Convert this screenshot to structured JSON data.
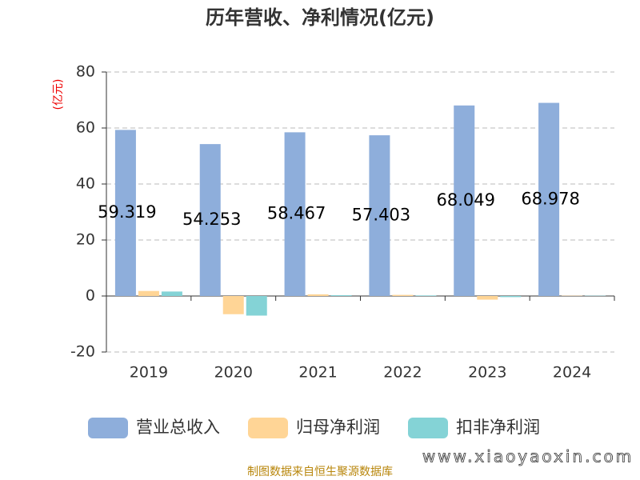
{
  "chart_data": {
    "type": "bar",
    "title": "历年营收、净利情况(亿元)",
    "y_label": "(亿元)",
    "categories": [
      "2019",
      "2020",
      "2021",
      "2022",
      "2023",
      "2024"
    ],
    "series": [
      {
        "name": "营业总收入",
        "color": "#8eaedb",
        "values": [
          59.319,
          54.253,
          58.467,
          57.403,
          68.049,
          68.978
        ]
      },
      {
        "name": "归母净利润",
        "color": "#ffd596",
        "values": [
          1.8,
          -6.5,
          0.6,
          0.4,
          -1.3,
          0.1
        ]
      },
      {
        "name": "扣非净利润",
        "color": "#84d3d6",
        "values": [
          1.6,
          -7.0,
          0.3,
          0.2,
          -0.4,
          0.1
        ]
      }
    ],
    "ylim": [
      -20,
      80
    ],
    "yticks": [
      -20,
      0,
      20,
      40,
      60,
      80
    ],
    "grid": true,
    "source": "制图数据来自恒生聚源数据库",
    "watermark": "www.xiaoyaoxin.com"
  }
}
